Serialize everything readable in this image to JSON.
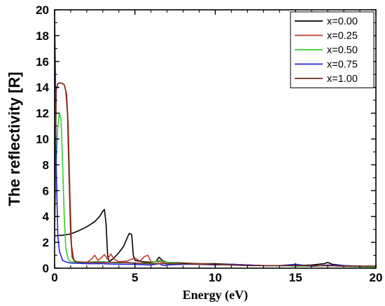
{
  "chart_data": {
    "type": "line",
    "title": "",
    "xlabel": "Energy (eV)",
    "ylabel": "The reflectivity [R]",
    "xlim": [
      0,
      20
    ],
    "ylim": [
      0,
      20
    ],
    "xticks": [
      0,
      5,
      10,
      15,
      20
    ],
    "yticks": [
      0,
      2,
      4,
      6,
      8,
      10,
      12,
      14,
      16,
      18,
      20
    ],
    "x_minor_step": 1,
    "y_minor_step": 1,
    "grid": false,
    "legend_position": "top-right",
    "series": [
      {
        "name": "x=0.00",
        "color": "#000000",
        "points": [
          [
            0.0,
            2.5
          ],
          [
            0.5,
            2.55
          ],
          [
            1.0,
            2.65
          ],
          [
            1.5,
            2.9
          ],
          [
            2.0,
            3.2
          ],
          [
            2.5,
            3.6
          ],
          [
            2.8,
            4.0
          ],
          [
            3.0,
            4.4
          ],
          [
            3.1,
            4.55
          ],
          [
            3.2,
            3.5
          ],
          [
            3.3,
            1.0
          ],
          [
            3.4,
            0.5
          ],
          [
            3.7,
            0.8
          ],
          [
            4.0,
            1.2
          ],
          [
            4.3,
            1.7
          ],
          [
            4.5,
            2.3
          ],
          [
            4.65,
            2.7
          ],
          [
            4.8,
            2.6
          ],
          [
            4.9,
            1.0
          ],
          [
            5.0,
            0.6
          ],
          [
            5.5,
            0.5
          ],
          [
            6.0,
            0.45
          ],
          [
            6.3,
            0.5
          ],
          [
            6.5,
            0.85
          ],
          [
            6.7,
            0.6
          ],
          [
            7.0,
            0.45
          ],
          [
            8.0,
            0.4
          ],
          [
            9.0,
            0.35
          ],
          [
            10.0,
            0.35
          ],
          [
            11.0,
            0.3
          ],
          [
            12.0,
            0.25
          ],
          [
            13.0,
            0.2
          ],
          [
            14.0,
            0.2
          ],
          [
            15.0,
            0.2
          ],
          [
            16.0,
            0.25
          ],
          [
            16.8,
            0.35
          ],
          [
            17.0,
            0.45
          ],
          [
            17.3,
            0.3
          ],
          [
            18.0,
            0.2
          ],
          [
            19.0,
            0.15
          ],
          [
            20.0,
            0.15
          ]
        ]
      },
      {
        "name": "x=0.25",
        "color": "#c0392b",
        "points": [
          [
            0.0,
            2.0
          ],
          [
            0.05,
            8.0
          ],
          [
            0.1,
            13.8
          ],
          [
            0.2,
            14.3
          ],
          [
            0.4,
            14.35
          ],
          [
            0.6,
            14.2
          ],
          [
            0.75,
            13.5
          ],
          [
            0.85,
            11.0
          ],
          [
            0.95,
            6.0
          ],
          [
            1.05,
            1.8
          ],
          [
            1.2,
            0.6
          ],
          [
            1.5,
            0.45
          ],
          [
            2.0,
            0.45
          ],
          [
            2.3,
            0.7
          ],
          [
            2.5,
            1.0
          ],
          [
            2.7,
            0.6
          ],
          [
            2.9,
            0.8
          ],
          [
            3.1,
            1.05
          ],
          [
            3.3,
            0.7
          ],
          [
            3.5,
            1.1
          ],
          [
            3.7,
            0.7
          ],
          [
            4.0,
            0.5
          ],
          [
            4.5,
            0.55
          ],
          [
            5.0,
            0.8
          ],
          [
            5.3,
            0.55
          ],
          [
            5.6,
            0.9
          ],
          [
            5.8,
            1.0
          ],
          [
            6.0,
            0.5
          ],
          [
            6.5,
            0.5
          ],
          [
            7.0,
            0.4
          ],
          [
            8.0,
            0.35
          ],
          [
            9.0,
            0.35
          ],
          [
            10.0,
            0.3
          ],
          [
            11.0,
            0.3
          ],
          [
            12.0,
            0.25
          ],
          [
            13.0,
            0.2
          ],
          [
            14.0,
            0.2
          ],
          [
            15.0,
            0.2
          ],
          [
            16.0,
            0.15
          ],
          [
            17.0,
            0.2
          ],
          [
            18.0,
            0.15
          ],
          [
            19.0,
            0.12
          ],
          [
            20.0,
            0.1
          ]
        ]
      },
      {
        "name": "x=0.50",
        "color": "#33cc33",
        "points": [
          [
            0.0,
            3.0
          ],
          [
            0.1,
            8.0
          ],
          [
            0.2,
            11.0
          ],
          [
            0.3,
            12.0
          ],
          [
            0.4,
            11.5
          ],
          [
            0.5,
            8.0
          ],
          [
            0.6,
            4.0
          ],
          [
            0.7,
            1.5
          ],
          [
            0.85,
            0.7
          ],
          [
            1.0,
            0.5
          ],
          [
            1.5,
            0.45
          ],
          [
            2.0,
            0.45
          ],
          [
            2.5,
            0.5
          ],
          [
            3.0,
            0.5
          ],
          [
            3.5,
            0.45
          ],
          [
            4.0,
            0.4
          ],
          [
            4.5,
            0.45
          ],
          [
            5.0,
            0.4
          ],
          [
            5.5,
            0.4
          ],
          [
            6.0,
            0.4
          ],
          [
            6.5,
            0.6
          ],
          [
            7.0,
            0.45
          ],
          [
            8.0,
            0.35
          ],
          [
            9.0,
            0.3
          ],
          [
            10.0,
            0.3
          ],
          [
            11.0,
            0.25
          ],
          [
            12.0,
            0.2
          ],
          [
            13.0,
            0.2
          ],
          [
            14.0,
            0.2
          ],
          [
            15.0,
            0.15
          ],
          [
            16.0,
            0.15
          ],
          [
            17.0,
            0.2
          ],
          [
            18.0,
            0.15
          ],
          [
            19.0,
            0.12
          ],
          [
            20.0,
            0.1
          ]
        ]
      },
      {
        "name": "x=0.75",
        "color": "#2424d6",
        "points": [
          [
            0.0,
            20.0
          ],
          [
            0.05,
            15.0
          ],
          [
            0.1,
            8.0
          ],
          [
            0.2,
            2.5
          ],
          [
            0.3,
            1.3
          ],
          [
            0.5,
            0.6
          ],
          [
            0.8,
            0.45
          ],
          [
            1.0,
            0.4
          ],
          [
            2.0,
            0.35
          ],
          [
            3.0,
            0.35
          ],
          [
            4.0,
            0.3
          ],
          [
            5.0,
            0.3
          ],
          [
            6.0,
            0.25
          ],
          [
            6.5,
            0.35
          ],
          [
            6.8,
            0.2
          ],
          [
            7.0,
            0.25
          ],
          [
            8.0,
            0.3
          ],
          [
            9.0,
            0.3
          ],
          [
            10.0,
            0.25
          ],
          [
            11.0,
            0.3
          ],
          [
            12.0,
            0.25
          ],
          [
            13.0,
            0.2
          ],
          [
            14.0,
            0.2
          ],
          [
            15.0,
            0.3
          ],
          [
            16.0,
            0.15
          ],
          [
            17.0,
            0.25
          ],
          [
            18.0,
            0.2
          ],
          [
            19.0,
            0.15
          ],
          [
            20.0,
            0.15
          ]
        ]
      },
      {
        "name": "x=1.00",
        "color": "#7a2a1a",
        "points": [
          [
            0.0,
            3.0
          ],
          [
            0.05,
            9.0
          ],
          [
            0.1,
            13.8
          ],
          [
            0.2,
            14.3
          ],
          [
            0.4,
            14.35
          ],
          [
            0.6,
            14.2
          ],
          [
            0.7,
            13.7
          ],
          [
            0.8,
            12.0
          ],
          [
            0.9,
            7.0
          ],
          [
            1.0,
            2.5
          ],
          [
            1.1,
            0.8
          ],
          [
            1.3,
            0.5
          ],
          [
            2.0,
            0.45
          ],
          [
            3.0,
            0.45
          ],
          [
            4.0,
            0.45
          ],
          [
            5.0,
            0.4
          ],
          [
            6.0,
            0.35
          ],
          [
            7.0,
            0.35
          ],
          [
            8.0,
            0.35
          ],
          [
            9.0,
            0.3
          ],
          [
            10.0,
            0.3
          ],
          [
            11.0,
            0.25
          ],
          [
            12.0,
            0.2
          ],
          [
            13.0,
            0.2
          ],
          [
            14.0,
            0.2
          ],
          [
            15.0,
            0.2
          ],
          [
            16.0,
            0.2
          ],
          [
            17.0,
            0.2
          ],
          [
            18.0,
            0.15
          ],
          [
            19.0,
            0.15
          ],
          [
            20.0,
            0.15
          ]
        ]
      }
    ]
  }
}
